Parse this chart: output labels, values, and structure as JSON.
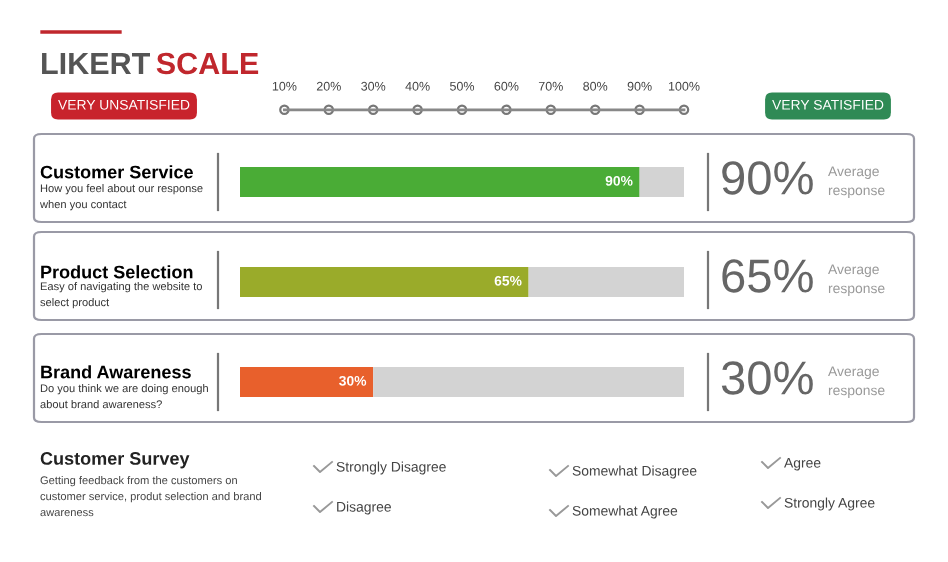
{
  "chart_data": {
    "type": "bar",
    "orientation": "horizontal",
    "stacked": true,
    "title": "LIKERT SCALE",
    "categories": [
      "Customer Service",
      "Product Selection",
      "Brand Awareness"
    ],
    "series": [
      {
        "colors": [
          "#4aac36",
          "#9aab2a",
          "#e8602c"
        ],
        "values": [
          90,
          65,
          30
        ],
        "value_labels": [
          "90%",
          "65%",
          "30%"
        ]
      },
      {
        "color": "#d3d3d3",
        "values": [
          10,
          35,
          70
        ]
      }
    ],
    "xlim": [
      0,
      100
    ],
    "xticks": [
      {
        "value": 10,
        "label": "10%"
      },
      {
        "value": 20,
        "label": "20%"
      },
      {
        "value": 30,
        "label": "30%"
      },
      {
        "value": 40,
        "label": "40%"
      },
      {
        "value": 50,
        "label": "50%"
      },
      {
        "value": 60,
        "label": "60%"
      },
      {
        "value": 70,
        "label": "70%"
      },
      {
        "value": 80,
        "label": "80%"
      },
      {
        "value": 90,
        "label": "90%"
      },
      {
        "value": 100,
        "label": "100%"
      }
    ],
    "tick_labels": "xy",
    "grid": false,
    "legend": false,
    "annotations": [
      "How you feel about our response when you contact",
      "Easy of navigating the website to select product",
      "Do you think we are doing enough about brand awareness?",
      "90%",
      "65%",
      "30%",
      "Average response",
      "Average response",
      "Average response",
      "VERY UNSATISFIED",
      "VERY SATISFIED",
      "Customer Survey",
      "Getting feedback from the customers on customer service, produt selection and brand awareness",
      "Strongly Disagree",
      "Disagree",
      "Somewhat Disagree",
      "Somewhat Agree",
      "Agree",
      "Strongly Agree"
    ]
  }
}
